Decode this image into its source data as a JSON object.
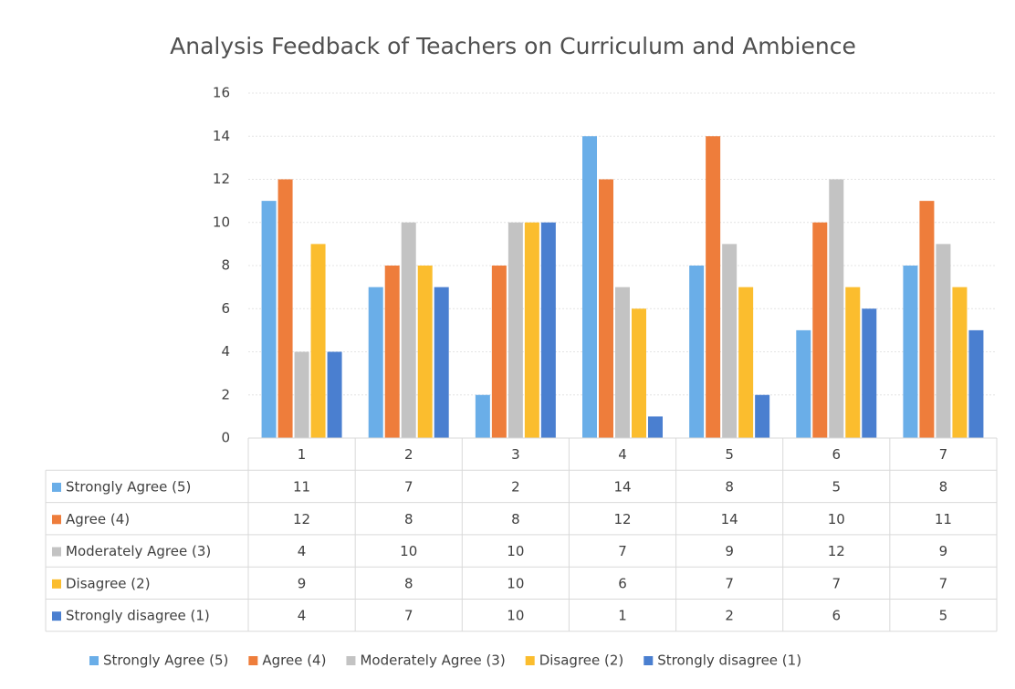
{
  "chart_data": {
    "type": "bar",
    "title": "Analysis Feedback of Teachers on Curriculum and Ambience",
    "categories": [
      "1",
      "2",
      "3",
      "4",
      "5",
      "6",
      "7"
    ],
    "series": [
      {
        "name": "Strongly Agree (5)",
        "color": "#6aaee8",
        "values": [
          11,
          7,
          2,
          14,
          8,
          5,
          8
        ]
      },
      {
        "name": "Agree (4)",
        "color": "#ee7d3b",
        "values": [
          12,
          8,
          8,
          12,
          14,
          10,
          11
        ]
      },
      {
        "name": "Moderately Agree (3)",
        "color": "#c3c3c3",
        "values": [
          4,
          10,
          10,
          7,
          9,
          12,
          9
        ]
      },
      {
        "name": "Disagree (2)",
        "color": "#fbbd2e",
        "values": [
          9,
          8,
          10,
          6,
          7,
          7,
          7
        ]
      },
      {
        "name": "Strongly disagree (1)",
        "color": "#4a7fd0",
        "values": [
          4,
          7,
          10,
          1,
          2,
          6,
          5
        ]
      }
    ],
    "ylim": [
      0,
      16
    ],
    "yticks": [
      0,
      2,
      4,
      6,
      8,
      10,
      12,
      14,
      16
    ],
    "grid": true,
    "legend": "bottom",
    "data_table": true
  }
}
